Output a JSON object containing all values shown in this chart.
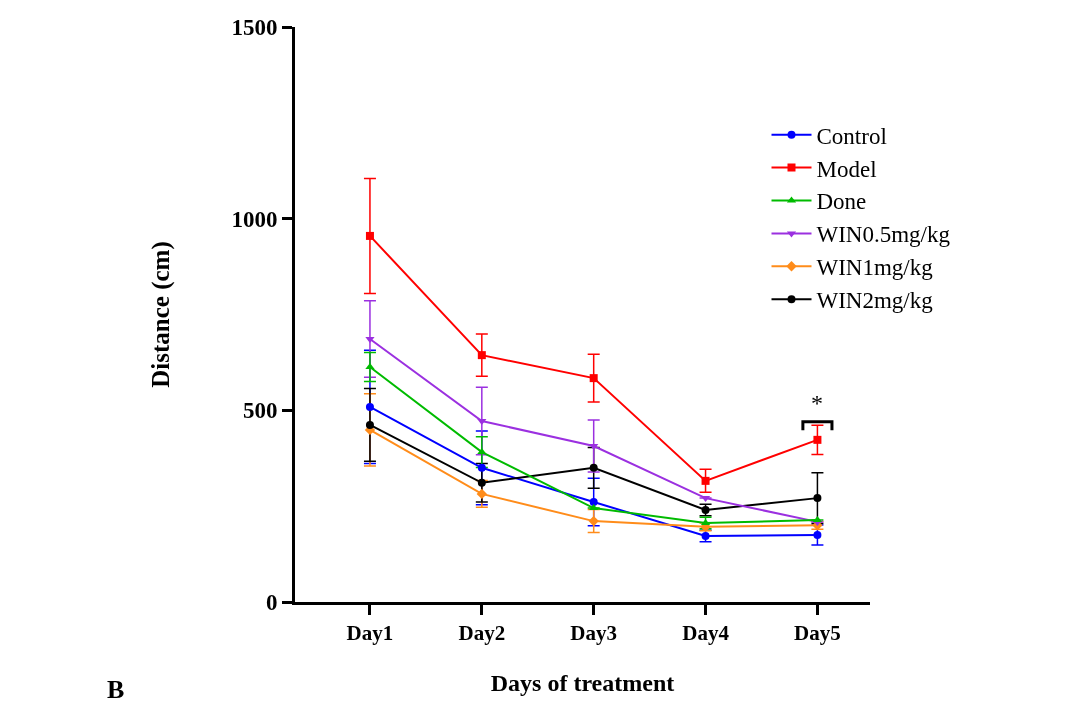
{
  "chart_data": {
    "type": "line",
    "xlabel": "Days of treatment",
    "ylabel": "Distance (cm)",
    "categories": [
      "Day1",
      "Day2",
      "Day3",
      "Day4",
      "Day5"
    ],
    "ylim": [
      0,
      1500
    ],
    "yticks": [
      0,
      500,
      1000,
      1500
    ],
    "grid": false,
    "legend": "top right",
    "line_style": "solid",
    "series": [
      {
        "name": "Control",
        "color": "#0000ff",
        "marker": "circle",
        "values": [
          509,
          350,
          261,
          172,
          175
        ],
        "errors": [
          148,
          96,
          62,
          15,
          26
        ]
      },
      {
        "name": "Model",
        "color": "#ff0000",
        "marker": "square",
        "values": [
          955,
          644,
          584,
          316,
          423
        ],
        "errors": [
          150,
          55,
          62,
          30,
          38
        ]
      },
      {
        "name": "Done",
        "color": "#00bb00",
        "marker": "triangle",
        "values": [
          613,
          391,
          245,
          206,
          214
        ],
        "errors": [
          38,
          40,
          null,
          15,
          null
        ]
      },
      {
        "name": "WIN0.5mg/kg",
        "color": "#9b30e0",
        "marker": "triangle-down",
        "values": [
          686,
          472,
          407,
          271,
          209
        ],
        "errors": [
          100,
          88,
          68,
          null,
          null
        ]
      },
      {
        "name": "WIN1mg/kg",
        "color": "#ff8c1a",
        "marker": "diamond",
        "values": [
          449,
          282,
          211,
          196,
          200
        ],
        "errors": [
          94,
          35,
          30,
          10,
          10
        ]
      },
      {
        "name": "WIN2mg/kg",
        "color": "#000000",
        "marker": "circle",
        "values": [
          462,
          311,
          350,
          240,
          271
        ],
        "errors": [
          95,
          50,
          53,
          15,
          66
        ]
      }
    ],
    "annotations": [
      {
        "text": "*",
        "x": "Day5",
        "y": 470
      },
      "B"
    ]
  }
}
